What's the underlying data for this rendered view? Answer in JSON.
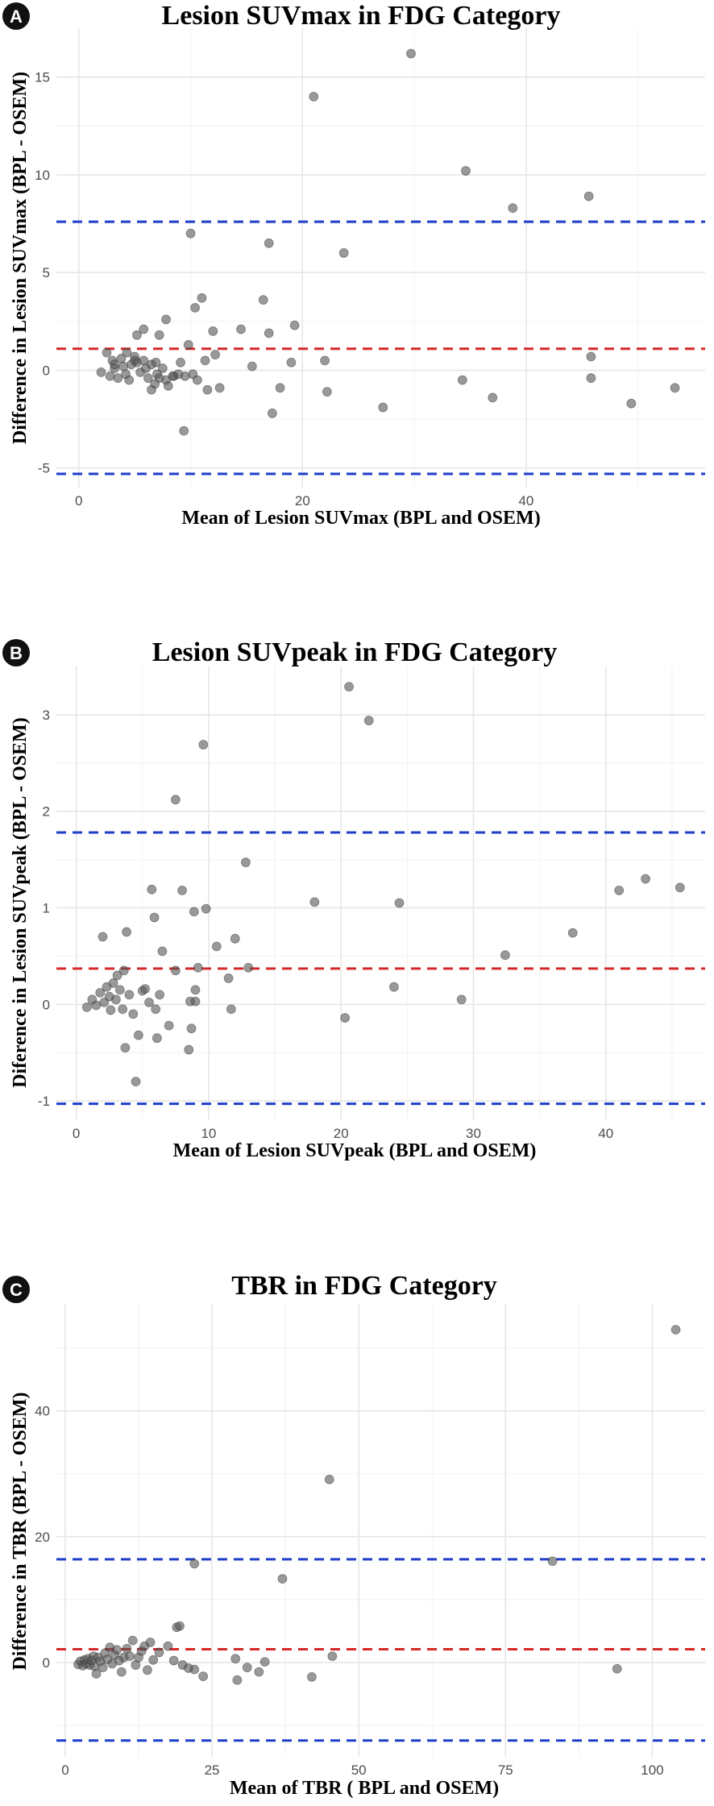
{
  "chart_data": [
    {
      "type": "scatter",
      "panel_label": "A",
      "title": "Lesion SUVmax in FDG Category",
      "xlabel": "Mean of Lesion SUVmax (BPL and OSEM)",
      "ylabel": "Difference in Lesion SUVmax (BPL - OSEM)",
      "xlim": [
        -2,
        56
      ],
      "ylim": [
        -6,
        17.5
      ],
      "xticks": [
        0,
        20,
        40
      ],
      "xtick_labels": [
        "0",
        "20",
        "40"
      ],
      "yticks": [
        -5,
        0,
        5,
        10,
        15
      ],
      "ytick_labels": [
        "-5",
        "0",
        "5",
        "10",
        "15"
      ],
      "mean_difference": 1.1,
      "upper_loa": 7.6,
      "lower_loa": -5.3,
      "mean_line_color": "#d62728",
      "loa_line_color": "#1f3ec9",
      "point_color": "#555555",
      "points": [
        [
          2.0,
          -0.1
        ],
        [
          2.5,
          0.9
        ],
        [
          2.8,
          -0.3
        ],
        [
          3.0,
          0.5
        ],
        [
          3.2,
          0.1
        ],
        [
          3.5,
          -0.4
        ],
        [
          3.8,
          0.6
        ],
        [
          4.0,
          0.2
        ],
        [
          4.2,
          -0.2
        ],
        [
          4.5,
          -0.5
        ],
        [
          4.7,
          0.3
        ],
        [
          5.0,
          0.7
        ],
        [
          5.2,
          0.4
        ],
        [
          5.5,
          -0.1
        ],
        [
          5.8,
          0.5
        ],
        [
          6.0,
          0.1
        ],
        [
          6.2,
          -0.4
        ],
        [
          6.5,
          0.3
        ],
        [
          6.8,
          -0.7
        ],
        [
          7.0,
          -0.2
        ],
        [
          7.2,
          -0.4
        ],
        [
          7.5,
          0.1
        ],
        [
          7.8,
          -0.5
        ],
        [
          8.0,
          -0.8
        ],
        [
          8.5,
          -0.3
        ],
        [
          5.2,
          1.8
        ],
        [
          5.8,
          2.1
        ],
        [
          7.2,
          1.8
        ],
        [
          7.8,
          2.6
        ],
        [
          8.4,
          -0.3
        ],
        [
          9.1,
          0.4
        ],
        [
          9.5,
          -0.3
        ],
        [
          9.8,
          1.3
        ],
        [
          10.0,
          7.0
        ],
        [
          10.2,
          -0.2
        ],
        [
          10.4,
          3.2
        ],
        [
          10.6,
          -0.5
        ],
        [
          11.0,
          3.7
        ],
        [
          11.3,
          0.5
        ],
        [
          11.5,
          -1.0
        ],
        [
          12.0,
          2.0
        ],
        [
          12.2,
          0.8
        ],
        [
          12.6,
          -0.9
        ],
        [
          9.4,
          -3.1
        ],
        [
          5.0,
          0.5
        ],
        [
          4.3,
          0.9
        ],
        [
          6.5,
          -1.0
        ],
        [
          3.2,
          0.3
        ],
        [
          6.9,
          0.4
        ],
        [
          8.9,
          -0.2
        ],
        [
          14.5,
          2.1
        ],
        [
          15.5,
          0.2
        ],
        [
          16.5,
          3.6
        ],
        [
          17.0,
          6.5
        ],
        [
          17.0,
          1.9
        ],
        [
          17.3,
          -2.2
        ],
        [
          18.0,
          -0.9
        ],
        [
          19.0,
          0.4
        ],
        [
          19.3,
          2.3
        ],
        [
          21.0,
          14.0
        ],
        [
          22.0,
          0.5
        ],
        [
          22.2,
          -1.1
        ],
        [
          23.7,
          6.0
        ],
        [
          27.2,
          -1.9
        ],
        [
          29.7,
          16.2
        ],
        [
          34.3,
          -0.5
        ],
        [
          34.6,
          10.2
        ],
        [
          37.0,
          -1.4
        ],
        [
          38.8,
          8.3
        ],
        [
          45.6,
          8.9
        ],
        [
          45.8,
          0.7
        ],
        [
          45.8,
          -0.4
        ],
        [
          49.4,
          -1.7
        ],
        [
          53.3,
          -0.9
        ]
      ]
    },
    {
      "type": "scatter",
      "panel_label": "B",
      "title": "Lesion SUVpeak in FDG Category",
      "xlabel": "Mean of Lesion SUVpeak (BPL and OSEM)",
      "ylabel": "Diference in Lesion SUVpeak (BPL - OSEM)",
      "xlim": [
        -1.5,
        47.5
      ],
      "ylim": [
        -1.2,
        3.5
      ],
      "xticks": [
        0,
        10,
        20,
        30,
        40
      ],
      "xtick_labels": [
        "0",
        "10",
        "20",
        "30",
        "40"
      ],
      "yticks": [
        -1,
        0,
        1,
        2,
        3
      ],
      "ytick_labels": [
        "-1",
        "0",
        "1",
        "2",
        "3"
      ],
      "mean_difference": 0.37,
      "upper_loa": 1.78,
      "lower_loa": -1.03,
      "mean_line_color": "#d62728",
      "loa_line_color": "#1f3ec9",
      "point_color": "#555555",
      "points": [
        [
          0.8,
          -0.03
        ],
        [
          1.2,
          0.05
        ],
        [
          1.5,
          -0.01
        ],
        [
          1.8,
          0.12
        ],
        [
          2.0,
          0.7
        ],
        [
          2.1,
          0.02
        ],
        [
          2.3,
          0.18
        ],
        [
          2.5,
          0.08
        ],
        [
          2.6,
          -0.06
        ],
        [
          2.8,
          0.22
        ],
        [
          3.0,
          0.05
        ],
        [
          3.1,
          0.3
        ],
        [
          3.3,
          0.15
        ],
        [
          3.5,
          -0.05
        ],
        [
          3.6,
          0.35
        ],
        [
          3.7,
          -0.45
        ],
        [
          3.8,
          0.75
        ],
        [
          4.0,
          0.1
        ],
        [
          4.3,
          -0.1
        ],
        [
          4.5,
          -0.8
        ],
        [
          4.7,
          -0.32
        ],
        [
          5.0,
          0.14
        ],
        [
          5.2,
          0.16
        ],
        [
          5.5,
          0.02
        ],
        [
          5.7,
          1.19
        ],
        [
          5.9,
          0.9
        ],
        [
          6.0,
          -0.05
        ],
        [
          6.1,
          -0.35
        ],
        [
          6.3,
          0.1
        ],
        [
          6.5,
          0.55
        ],
        [
          7.0,
          -0.22
        ],
        [
          7.5,
          2.12
        ],
        [
          7.5,
          0.35
        ],
        [
          8.0,
          1.18
        ],
        [
          8.5,
          -0.47
        ],
        [
          8.6,
          0.03
        ],
        [
          8.7,
          -0.25
        ],
        [
          8.9,
          0.96
        ],
        [
          9.0,
          0.15
        ],
        [
          9.0,
          0.03
        ],
        [
          9.2,
          0.38
        ],
        [
          9.6,
          2.69
        ],
        [
          9.8,
          0.99
        ],
        [
          10.6,
          0.6
        ],
        [
          11.5,
          0.27
        ],
        [
          11.7,
          -0.05
        ],
        [
          12.0,
          0.68
        ],
        [
          12.8,
          1.47
        ],
        [
          13.0,
          0.38
        ],
        [
          18.0,
          1.06
        ],
        [
          20.3,
          -0.14
        ],
        [
          20.6,
          3.29
        ],
        [
          22.1,
          2.94
        ],
        [
          24.0,
          0.18
        ],
        [
          24.4,
          1.05
        ],
        [
          29.1,
          0.05
        ],
        [
          32.4,
          0.51
        ],
        [
          37.5,
          0.74
        ],
        [
          41.0,
          1.18
        ],
        [
          43.0,
          1.3
        ],
        [
          45.6,
          1.21
        ]
      ]
    },
    {
      "type": "scatter",
      "panel_label": "C",
      "title": "TBR in FDG Category",
      "xlabel": "Mean of TBR ( BPL and OSEM)",
      "ylabel": "Difference in TBR (BPL - OSEM)",
      "xlim": [
        -1.5,
        109
      ],
      "ylim": [
        -15,
        57
      ],
      "xticks": [
        0,
        25,
        50,
        75,
        100
      ],
      "xtick_labels": [
        "0",
        "25",
        "50",
        "75",
        "100"
      ],
      "yticks": [
        0,
        20,
        40
      ],
      "ytick_labels": [
        "0",
        "20",
        "40"
      ],
      "mean_difference": 2.1,
      "upper_loa": 16.4,
      "lower_loa": -12.4,
      "mean_line_color": "#d62728",
      "loa_line_color": "#1f3ec9",
      "point_color": "#555555",
      "points": [
        [
          2.2,
          -0.3
        ],
        [
          2.6,
          0.2
        ],
        [
          3.0,
          -0.5
        ],
        [
          3.3,
          0.4
        ],
        [
          3.6,
          -0.2
        ],
        [
          3.9,
          0.6
        ],
        [
          4.2,
          -0.4
        ],
        [
          4.5,
          0.3
        ],
        [
          4.8,
          1.0
        ],
        [
          5.0,
          -0.6
        ],
        [
          5.3,
          -1.8
        ],
        [
          5.6,
          0.8
        ],
        [
          6.0,
          0.2
        ],
        [
          6.4,
          -0.8
        ],
        [
          6.8,
          1.5
        ],
        [
          7.2,
          0.5
        ],
        [
          7.6,
          2.4
        ],
        [
          8.0,
          -0.2
        ],
        [
          8.4,
          1.2
        ],
        [
          8.8,
          2.0
        ],
        [
          9.2,
          0.3
        ],
        [
          9.6,
          -1.5
        ],
        [
          10.0,
          0.8
        ],
        [
          10.5,
          2.2
        ],
        [
          11.0,
          1.0
        ],
        [
          11.5,
          3.5
        ],
        [
          12.0,
          -0.4
        ],
        [
          12.5,
          0.8
        ],
        [
          13.0,
          1.8
        ],
        [
          13.5,
          2.6
        ],
        [
          14.0,
          -1.2
        ],
        [
          14.5,
          3.2
        ],
        [
          15.0,
          0.4
        ],
        [
          16.0,
          1.6
        ],
        [
          17.5,
          2.6
        ],
        [
          18.5,
          0.3
        ],
        [
          19.0,
          5.6
        ],
        [
          19.5,
          5.8
        ],
        [
          20.0,
          -0.4
        ],
        [
          21.0,
          -0.9
        ],
        [
          22.0,
          -1.1
        ],
        [
          22.0,
          15.7
        ],
        [
          23.5,
          -2.2
        ],
        [
          29.0,
          0.6
        ],
        [
          29.3,
          -2.8
        ],
        [
          31.0,
          -0.8
        ],
        [
          33.0,
          -1.5
        ],
        [
          34.0,
          0.1
        ],
        [
          37.0,
          13.3
        ],
        [
          42.0,
          -2.3
        ],
        [
          45.0,
          29.1
        ],
        [
          45.5,
          1.0
        ],
        [
          83.0,
          16.1
        ],
        [
          94.0,
          -1.0
        ],
        [
          104.0,
          52.9
        ]
      ]
    }
  ]
}
